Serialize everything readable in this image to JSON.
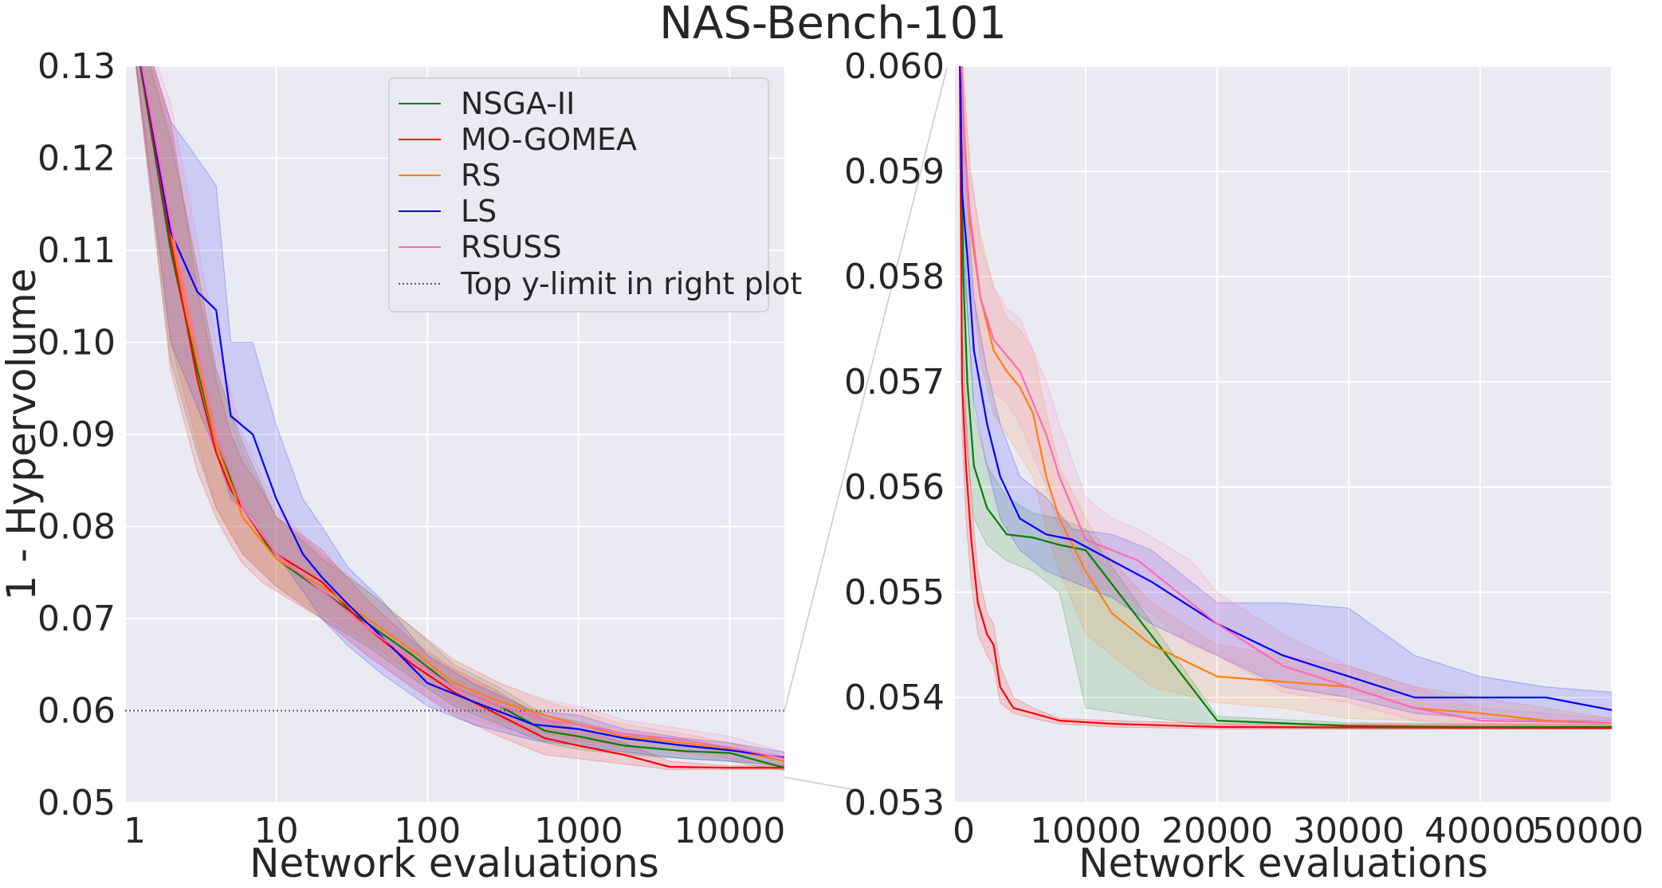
{
  "title": "NAS-Bench-101",
  "colors": {
    "NSGA-II": "#008000",
    "MO-GOMEA": "#ff0000",
    "RS": "#ff7f0e",
    "LS": "#0000ff",
    "RSUSS": "#ff69b4",
    "limit": "#555555",
    "panel": "#eaeaf2",
    "grid": "#ffffff"
  },
  "legend": {
    "placement": "top-right of left panel",
    "entries": [
      "NSGA-II",
      "MO-GOMEA",
      "RS",
      "LS",
      "RSUSS",
      "Top y-limit in right plot"
    ]
  },
  "chart_data": [
    {
      "type": "line",
      "panel": "left",
      "xlabel": "Network evaluations",
      "ylabel": "1 - Hypervolume",
      "xscale": "log",
      "xlim": [
        1,
        23000
      ],
      "ylim": [
        0.05,
        0.13
      ],
      "xticks": [
        1,
        10,
        100,
        1000,
        10000
      ],
      "xtick_labels": [
        "1",
        "10",
        "100",
        "1000",
        "10000"
      ],
      "yticks": [
        0.05,
        0.06,
        0.07,
        0.08,
        0.09,
        0.1,
        0.11,
        0.12,
        0.13
      ],
      "ytick_labels": [
        "0.05",
        "0.06",
        "0.07",
        "0.08",
        "0.09",
        "0.10",
        "0.11",
        "0.12",
        "0.13"
      ],
      "grid": true,
      "hline": {
        "name": "Top y-limit in right plot",
        "y": 0.06,
        "style": "dotted"
      },
      "series": [
        {
          "name": "NSGA-II",
          "x": [
            1,
            2,
            3,
            4,
            6,
            10,
            20,
            40,
            80,
            150,
            300,
            600,
            1000,
            2000,
            5000,
            10000,
            23000
          ],
          "y": [
            0.14,
            0.11,
            0.097,
            0.089,
            0.082,
            0.0765,
            0.073,
            0.0695,
            0.066,
            0.0625,
            0.0605,
            0.0578,
            0.0572,
            0.0562,
            0.0556,
            0.0554,
            0.0538
          ],
          "lower": [
            0.14,
            0.098,
            0.088,
            0.082,
            0.077,
            0.0735,
            0.07,
            0.067,
            0.0635,
            0.0605,
            0.0585,
            0.0565,
            0.0558,
            0.0552,
            0.0548,
            0.0545,
            0.0535
          ],
          "upper": [
            0.14,
            0.122,
            0.108,
            0.097,
            0.089,
            0.081,
            0.0765,
            0.073,
            0.069,
            0.065,
            0.0625,
            0.0595,
            0.0588,
            0.0575,
            0.0565,
            0.056,
            0.0545
          ]
        },
        {
          "name": "MO-GOMEA",
          "x": [
            1,
            2,
            3,
            4,
            5,
            6,
            8,
            10,
            20,
            40,
            80,
            150,
            300,
            600,
            1000,
            2000,
            4000,
            10000,
            23000
          ],
          "y": [
            0.14,
            0.111,
            0.096,
            0.088,
            0.084,
            0.082,
            0.079,
            0.077,
            0.074,
            0.069,
            0.065,
            0.062,
            0.0595,
            0.057,
            0.0562,
            0.0552,
            0.0539,
            0.0538,
            0.0538
          ],
          "lower": [
            0.14,
            0.097,
            0.086,
            0.081,
            0.078,
            0.076,
            0.074,
            0.073,
            0.07,
            0.066,
            0.0625,
            0.0595,
            0.0572,
            0.0552,
            0.0548,
            0.0542,
            0.0536,
            0.0536,
            0.0536
          ],
          "upper": [
            0.14,
            0.124,
            0.106,
            0.096,
            0.09,
            0.087,
            0.084,
            0.081,
            0.0775,
            0.072,
            0.0675,
            0.0645,
            0.062,
            0.059,
            0.058,
            0.0565,
            0.0545,
            0.054,
            0.054
          ]
        },
        {
          "name": "RS",
          "x": [
            1,
            2,
            3,
            4,
            6,
            10,
            20,
            40,
            80,
            150,
            300,
            600,
            1000,
            2000,
            5000,
            10000,
            23000
          ],
          "y": [
            0.14,
            0.112,
            0.098,
            0.089,
            0.081,
            0.0765,
            0.0735,
            0.07,
            0.0665,
            0.063,
            0.061,
            0.0595,
            0.0585,
            0.0572,
            0.0565,
            0.0558,
            0.0545
          ],
          "lower": [
            0.14,
            0.1,
            0.089,
            0.082,
            0.077,
            0.0735,
            0.0705,
            0.0675,
            0.064,
            0.061,
            0.059,
            0.0575,
            0.0568,
            0.0562,
            0.0555,
            0.0548,
            0.0538
          ],
          "upper": [
            0.14,
            0.123,
            0.108,
            0.097,
            0.088,
            0.081,
            0.077,
            0.073,
            0.069,
            0.0655,
            0.063,
            0.061,
            0.06,
            0.0585,
            0.0575,
            0.0565,
            0.055
          ]
        },
        {
          "name": "LS",
          "x": [
            1,
            2,
            3,
            4,
            5,
            7,
            10,
            15,
            20,
            30,
            50,
            100,
            200,
            500,
            1000,
            2000,
            5000,
            10000,
            23000
          ],
          "y": [
            0.14,
            0.112,
            0.1055,
            0.1035,
            0.092,
            0.09,
            0.083,
            0.077,
            0.0745,
            0.0715,
            0.068,
            0.063,
            0.061,
            0.0585,
            0.058,
            0.057,
            0.0562,
            0.0557,
            0.0549
          ],
          "lower": [
            0.14,
            0.1,
            0.093,
            0.088,
            0.083,
            0.081,
            0.077,
            0.073,
            0.07,
            0.067,
            0.064,
            0.0605,
            0.0585,
            0.0568,
            0.0562,
            0.0555,
            0.0548,
            0.0545,
            0.054
          ],
          "upper": [
            0.14,
            0.124,
            0.12,
            0.117,
            0.1,
            0.1,
            0.091,
            0.083,
            0.08,
            0.0755,
            0.072,
            0.066,
            0.063,
            0.06,
            0.0595,
            0.058,
            0.057,
            0.0565,
            0.0555
          ]
        },
        {
          "name": "RSUSS",
          "x": [
            1,
            2,
            3,
            4,
            6,
            10,
            20,
            40,
            80,
            150,
            300,
            600,
            1000,
            2000,
            5000,
            10000,
            23000
          ],
          "y": [
            0.14,
            0.113,
            0.099,
            0.09,
            0.082,
            0.077,
            0.073,
            0.069,
            0.0655,
            0.0625,
            0.0605,
            0.059,
            0.0585,
            0.0575,
            0.0568,
            0.056,
            0.0548
          ],
          "lower": [
            0.14,
            0.1,
            0.089,
            0.082,
            0.077,
            0.0735,
            0.07,
            0.066,
            0.0625,
            0.0598,
            0.0582,
            0.057,
            0.0565,
            0.0558,
            0.0552,
            0.0546,
            0.054
          ],
          "upper": [
            0.14,
            0.126,
            0.111,
            0.1,
            0.09,
            0.082,
            0.077,
            0.0725,
            0.069,
            0.0655,
            0.063,
            0.0612,
            0.0605,
            0.059,
            0.058,
            0.0572,
            0.0555
          ]
        }
      ]
    },
    {
      "type": "line",
      "panel": "right",
      "xlabel": "Network evaluations",
      "xscale": "linear",
      "xlim": [
        0,
        50000
      ],
      "ylim": [
        0.053,
        0.06
      ],
      "xticks": [
        0,
        10000,
        20000,
        30000,
        40000,
        50000
      ],
      "xtick_labels": [
        "0",
        "10000",
        "20000",
        "30000",
        "40000",
        "50000"
      ],
      "yticks": [
        0.053,
        0.054,
        0.055,
        0.056,
        0.057,
        0.058,
        0.059,
        0.06
      ],
      "ytick_labels": [
        "0.053",
        "0.054",
        "0.055",
        "0.056",
        "0.057",
        "0.058",
        "0.059",
        "0.060"
      ],
      "grid": true,
      "series": [
        {
          "name": "NSGA-II",
          "x": [
            400,
            700,
            1000,
            1500,
            2500,
            4000,
            6000,
            8000,
            10000,
            20000,
            30000,
            40000,
            50000
          ],
          "y": [
            0.0605,
            0.058,
            0.057,
            0.0562,
            0.0558,
            0.05555,
            0.05552,
            0.05545,
            0.0554,
            0.05378,
            0.05373,
            0.05372,
            0.05372
          ],
          "lower": [
            0.0605,
            0.0572,
            0.0563,
            0.0557,
            0.05545,
            0.0553,
            0.0552,
            0.055,
            0.0539,
            0.05372,
            0.0537,
            0.0537,
            0.0537
          ],
          "upper": [
            0.0605,
            0.0588,
            0.0577,
            0.0567,
            0.0562,
            0.0559,
            0.05575,
            0.0557,
            0.0556,
            0.05382,
            0.05376,
            0.05375,
            0.05375
          ]
        },
        {
          "name": "MO-GOMEA",
          "x": [
            400,
            600,
            900,
            1300,
            1800,
            2500,
            3000,
            3500,
            4500,
            6000,
            8000,
            12000,
            20000,
            50000
          ],
          "y": [
            0.0605,
            0.057,
            0.0562,
            0.0555,
            0.0549,
            0.0546,
            0.0545,
            0.0541,
            0.0539,
            0.05385,
            0.05378,
            0.05375,
            0.05372,
            0.05371
          ],
          "lower": [
            0.0605,
            0.0565,
            0.0557,
            0.0551,
            0.0546,
            0.0544,
            0.0543,
            0.05395,
            0.05385,
            0.0538,
            0.05375,
            0.05372,
            0.0537,
            0.0537
          ],
          "upper": [
            0.0605,
            0.0575,
            0.0567,
            0.0559,
            0.0552,
            0.0548,
            0.0547,
            0.0543,
            0.054,
            0.0539,
            0.0538,
            0.05378,
            0.05375,
            0.05374
          ]
        },
        {
          "name": "RS",
          "x": [
            400,
            800,
            1200,
            2000,
            3000,
            4000,
            5000,
            6000,
            7000,
            8000,
            10000,
            12000,
            15000,
            20000,
            25000,
            30000,
            35000,
            40000,
            45000,
            50000
          ],
          "y": [
            0.0605,
            0.0593,
            0.0585,
            0.0578,
            0.0573,
            0.0571,
            0.05695,
            0.0567,
            0.0561,
            0.0557,
            0.0552,
            0.0548,
            0.0545,
            0.0542,
            0.05415,
            0.0541,
            0.0539,
            0.05385,
            0.05378,
            0.05376
          ],
          "lower": [
            0.0605,
            0.0588,
            0.058,
            0.0572,
            0.0567,
            0.0565,
            0.0563,
            0.0561,
            0.0556,
            0.0552,
            0.0546,
            0.0544,
            0.0541,
            0.05395,
            0.0539,
            0.0538,
            0.05378,
            0.05375,
            0.05372,
            0.05372
          ],
          "upper": [
            0.0605,
            0.0598,
            0.059,
            0.0584,
            0.0579,
            0.0576,
            0.0575,
            0.0573,
            0.0567,
            0.0562,
            0.0557,
            0.0553,
            0.0549,
            0.0545,
            0.0544,
            0.0543,
            0.0541,
            0.054,
            0.0539,
            0.0538
          ]
        },
        {
          "name": "LS",
          "x": [
            400,
            600,
            1000,
            1500,
            2500,
            3500,
            5000,
            7000,
            9000,
            12000,
            15000,
            20000,
            25000,
            30000,
            35000,
            40000,
            45000,
            50000
          ],
          "y": [
            0.0605,
            0.0588,
            0.0582,
            0.0573,
            0.0566,
            0.0561,
            0.0557,
            0.05555,
            0.0555,
            0.0553,
            0.0551,
            0.0547,
            0.0544,
            0.0542,
            0.054,
            0.054,
            0.054,
            0.05388
          ],
          "lower": [
            0.0605,
            0.0583,
            0.0577,
            0.0568,
            0.0562,
            0.0557,
            0.0554,
            0.0552,
            0.0551,
            0.05495,
            0.0547,
            0.0544,
            0.0541,
            0.054,
            0.05385,
            0.0538,
            0.05378,
            0.05378
          ],
          "upper": [
            0.0605,
            0.0593,
            0.0587,
            0.0578,
            0.0571,
            0.0566,
            0.0561,
            0.0559,
            0.0556,
            0.05555,
            0.0554,
            0.0549,
            0.0549,
            0.05485,
            0.0544,
            0.0542,
            0.0541,
            0.05405
          ]
        },
        {
          "name": "RSUSS",
          "x": [
            400,
            800,
            1200,
            2000,
            3000,
            4000,
            5000,
            6000,
            7000,
            8000,
            10000,
            12000,
            14000,
            16000,
            18000,
            20000,
            25000,
            30000,
            35000,
            40000,
            50000
          ],
          "y": [
            0.0605,
            0.0592,
            0.0586,
            0.0578,
            0.0574,
            0.05725,
            0.0571,
            0.0568,
            0.0565,
            0.0561,
            0.0555,
            0.0554,
            0.0553,
            0.0551,
            0.0549,
            0.0547,
            0.0543,
            0.0541,
            0.0539,
            0.05378,
            0.05376
          ],
          "lower": [
            0.0605,
            0.0587,
            0.0581,
            0.0573,
            0.0569,
            0.0568,
            0.0566,
            0.0563,
            0.056,
            0.0556,
            0.0551,
            0.055,
            0.0549,
            0.0547,
            0.0545,
            0.0544,
            0.05405,
            0.05395,
            0.05378,
            0.05372,
            0.05372
          ],
          "upper": [
            0.0605,
            0.0597,
            0.0591,
            0.0583,
            0.0579,
            0.0577,
            0.0576,
            0.0573,
            0.057,
            0.0566,
            0.0559,
            0.0557,
            0.0556,
            0.05545,
            0.0553,
            0.055,
            0.0546,
            0.0543,
            0.0541,
            0.0539,
            0.0538
          ]
        }
      ]
    }
  ]
}
